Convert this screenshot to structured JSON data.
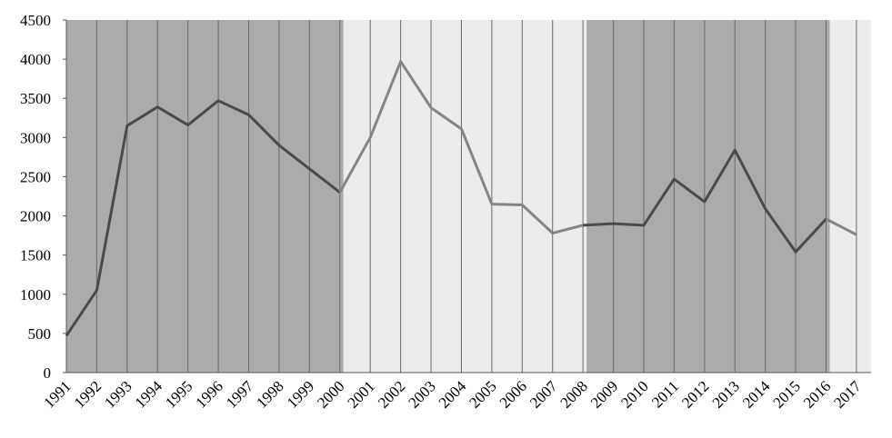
{
  "chart_data": {
    "type": "line",
    "categories": [
      "1991",
      "1992",
      "1993",
      "1994",
      "1995",
      "1996",
      "1997",
      "1998",
      "1999",
      "2000",
      "2001",
      "2002",
      "2003",
      "2004",
      "2005",
      "2006",
      "2007",
      "2008",
      "2009",
      "2010",
      "2011",
      "2012",
      "2013",
      "2014",
      "2015",
      "2016",
      "2017"
    ],
    "values": [
      470,
      1050,
      3150,
      3390,
      3160,
      3470,
      3290,
      2900,
      2600,
      2300,
      3000,
      3970,
      3380,
      3110,
      2150,
      2140,
      1780,
      1880,
      1900,
      1880,
      2470,
      2180,
      2840,
      2090,
      1540,
      1960,
      1760
    ],
    "ylim": [
      0,
      4500
    ],
    "yticks": [
      0,
      500,
      1000,
      1500,
      2000,
      2500,
      3000,
      3500,
      4000,
      4500
    ],
    "grid": true,
    "bands": [
      {
        "from": "1991",
        "to": "2000",
        "color": "#ababab",
        "line_color": "#4a4a4a"
      },
      {
        "from": "2000",
        "to": "2008",
        "color": "#ececec",
        "line_color": "#858585"
      },
      {
        "from": "2008",
        "to": "2016",
        "color": "#ababab",
        "line_color": "#4a4a4a"
      },
      {
        "from": "2016",
        "to": "2017",
        "color": "#ececec",
        "line_color": "#858585"
      }
    ]
  }
}
